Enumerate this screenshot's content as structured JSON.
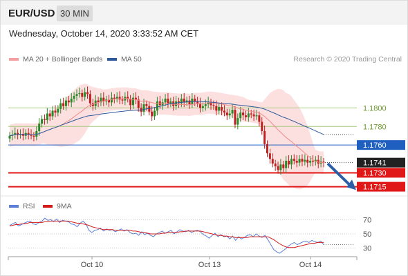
{
  "header": {
    "symbol": "EUR/USD",
    "timeframe": "30 MIN",
    "datetime": "Wednesday, October 14, 2020 3:33:52 AM CET"
  },
  "legend": {
    "bollinger_label": "MA 20 + Bollinger Bands",
    "ma50_label": "MA 50",
    "credit": "Research © 2020 Trading Central",
    "rsi_label": "RSI",
    "ma9_label": "9MA"
  },
  "colors": {
    "bollinger": "#f08a8a",
    "ma50": "#2e5a9c",
    "support": "#e01818",
    "pivot": "#1f5fbf",
    "target": "#a6c97a",
    "price": "#222222",
    "up": "#2a8a2a",
    "down": "#c02020"
  },
  "chart_data": [
    {
      "type": "candlestick",
      "instrument": "EUR/USD",
      "x_ticks": [
        "Oct 10",
        "Oct 13",
        "Oct 14"
      ],
      "price_levels": [
        {
          "label": "1.1800",
          "value": 1.18,
          "kind": "resistance"
        },
        {
          "label": "1.1780",
          "value": 1.178,
          "kind": "resistance"
        },
        {
          "label": "1.1760",
          "value": 1.176,
          "kind": "pivot"
        },
        {
          "label": "1.1741",
          "value": 1.1741,
          "kind": "last"
        },
        {
          "label": "1.1730",
          "value": 1.173,
          "kind": "support"
        },
        {
          "label": "1.1715",
          "value": 1.1715,
          "kind": "support"
        }
      ],
      "ylim": [
        1.1708,
        1.1842
      ],
      "close": [
        1.177,
        1.1771,
        1.1773,
        1.1771,
        1.1772,
        1.177,
        1.1773,
        1.1771,
        1.177,
        1.1769,
        1.1775,
        1.1783,
        1.1788,
        1.1787,
        1.1794,
        1.1791,
        1.1797,
        1.1795,
        1.1799,
        1.1805,
        1.1802,
        1.1808,
        1.1806,
        1.181,
        1.1813,
        1.1815,
        1.1816,
        1.1812,
        1.1817,
        1.1815,
        1.1805,
        1.1802,
        1.1808,
        1.1806,
        1.1811,
        1.1807,
        1.1809,
        1.1806,
        1.1811,
        1.181,
        1.1812,
        1.1809,
        1.1808,
        1.1812,
        1.181,
        1.1803,
        1.1811,
        1.1809,
        1.18,
        1.1796,
        1.1804,
        1.1802,
        1.1796,
        1.1791,
        1.1797,
        1.1807,
        1.1803,
        1.1806,
        1.181,
        1.1805,
        1.1807,
        1.1802,
        1.1807,
        1.1805,
        1.181,
        1.1806,
        1.1808,
        1.1804,
        1.181,
        1.1807,
        1.1805,
        1.18,
        1.1802,
        1.1804,
        1.1806,
        1.1803,
        1.1802,
        1.1797,
        1.1801,
        1.1797,
        1.1795,
        1.1792,
        1.1794,
        1.1798,
        1.1782,
        1.1789,
        1.1795,
        1.1792,
        1.179,
        1.1794,
        1.1793,
        1.1791,
        1.1792,
        1.1785,
        1.1775,
        1.1761,
        1.1751,
        1.1745,
        1.174,
        1.1737,
        1.1733,
        1.1739,
        1.1735,
        1.1743,
        1.1739,
        1.1745,
        1.1743,
        1.1741,
        1.1745,
        1.1742,
        1.1744,
        1.1741,
        1.1743,
        1.1742,
        1.1744,
        1.174,
        1.1742,
        1.1741
      ],
      "ma20_last": 1.1753,
      "ma50_last": 1.1765
    },
    {
      "type": "line",
      "title": "RSI",
      "series": [
        {
          "name": "RSI",
          "values": [
            62,
            64,
            66,
            61,
            63,
            65,
            67,
            68,
            64,
            63,
            66,
            68,
            72,
            69,
            70,
            67,
            71,
            66,
            69,
            68,
            67,
            64,
            63,
            60,
            65,
            68,
            64,
            55,
            52,
            55,
            56,
            58,
            54,
            57,
            55,
            56,
            53,
            55,
            57,
            54,
            56,
            52,
            50,
            51,
            48,
            53,
            49,
            51,
            48,
            46,
            50,
            52,
            54,
            51,
            53,
            55,
            50,
            53,
            56,
            54,
            53,
            55,
            52,
            54,
            55,
            53,
            49,
            47,
            44,
            48,
            51,
            46,
            49,
            46,
            47,
            43,
            47,
            41,
            46,
            43,
            45,
            48,
            49,
            46,
            50,
            47,
            45,
            48,
            42,
            35,
            28,
            25,
            23,
            26,
            29,
            33,
            36,
            38,
            35,
            37,
            39,
            40,
            38,
            41,
            39,
            38,
            40,
            35
          ]
        },
        {
          "name": "9MA",
          "values": [
            61,
            62,
            63,
            63,
            64,
            64,
            65,
            66,
            66,
            66,
            66,
            66,
            67,
            67,
            68,
            68,
            68,
            68,
            68,
            68,
            68,
            67,
            66,
            65,
            65,
            64,
            63,
            62,
            60,
            59,
            58,
            57,
            56,
            56,
            56,
            56,
            55,
            55,
            55,
            55,
            55,
            55,
            54,
            54,
            53,
            52,
            52,
            51,
            50,
            50,
            50,
            50,
            51,
            51,
            52,
            52,
            52,
            52,
            53,
            53,
            54,
            54,
            54,
            54,
            54,
            54,
            53,
            52,
            51,
            50,
            49,
            48,
            48,
            47,
            47,
            46,
            46,
            45,
            45,
            45,
            45,
            45,
            46,
            46,
            46,
            46,
            46,
            46,
            46,
            44,
            42,
            39,
            36,
            34,
            32,
            31,
            31,
            31,
            32,
            33,
            34,
            35,
            36,
            37,
            37,
            38,
            38,
            38
          ]
        }
      ],
      "y_ticks": [
        70,
        50,
        30
      ],
      "ylim": [
        22,
        78
      ],
      "x_ticks": [
        "Oct 10",
        "Oct 13",
        "Oct 14"
      ]
    }
  ]
}
